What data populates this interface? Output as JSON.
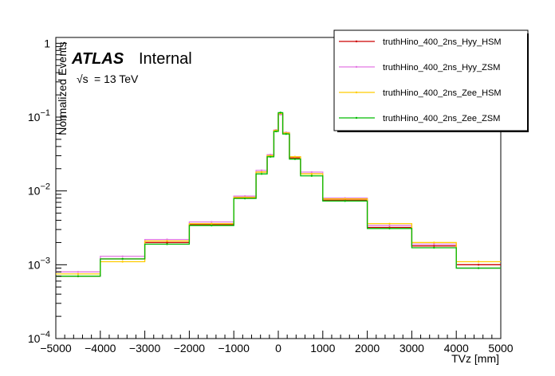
{
  "chart_data": {
    "type": "line",
    "style": "step-histogram",
    "xlabel": "TVz [mm]",
    "ylabel": "Normalized Events",
    "xlim": [
      -5000,
      5000
    ],
    "ylim": [
      0.0001,
      1.2
    ],
    "yscale": "log",
    "x_ticks": [
      "−5000",
      "−4000",
      "−3000",
      "−2000",
      "−1000",
      "0",
      "1000",
      "2000",
      "3000",
      "4000",
      "5000"
    ],
    "y_ticks": [
      {
        "base": "10",
        "exp": "−4",
        "value": 0.0001
      },
      {
        "base": "10",
        "exp": "−3",
        "value": 0.001
      },
      {
        "base": "10",
        "exp": "−2",
        "value": 0.01
      },
      {
        "base": "10",
        "exp": "−1",
        "value": 0.1
      },
      {
        "base": "1",
        "exp": "",
        "value": 1
      }
    ],
    "legend_position": "top-right",
    "annotations": {
      "experiment": "ATLAS",
      "status": "Internal",
      "energy": "= 13 TeV",
      "sqrt_symbol": "√s"
    },
    "bin_edges": [
      -5000,
      -4000,
      -3000,
      -2000,
      -1000,
      -500,
      -250,
      -100,
      0,
      100,
      250,
      500,
      1000,
      2000,
      3000,
      4000,
      5000
    ],
    "series": [
      {
        "name": "truthHino_400_2ns_Hyy_HSM",
        "color": "#cc0000",
        "values": [
          0.0007,
          0.0012,
          0.002,
          0.0035,
          0.008,
          0.018,
          0.03,
          0.065,
          0.11,
          0.06,
          0.028,
          0.017,
          0.0075,
          0.0032,
          0.0018,
          0.001
        ]
      },
      {
        "name": "truthHino_400_2ns_Hyy_ZSM",
        "color": "#e377e3",
        "values": [
          0.0008,
          0.0013,
          0.0022,
          0.0038,
          0.0085,
          0.019,
          0.031,
          0.067,
          0.108,
          0.062,
          0.029,
          0.018,
          0.008,
          0.0034,
          0.0019,
          0.0009
        ]
      },
      {
        "name": "truthHino_400_2ns_Zee_HSM",
        "color": "#ffcc00",
        "values": [
          0.00075,
          0.0011,
          0.0021,
          0.0036,
          0.0082,
          0.018,
          0.03,
          0.066,
          0.112,
          0.061,
          0.029,
          0.017,
          0.0078,
          0.0036,
          0.002,
          0.0011
        ]
      },
      {
        "name": "truthHino_400_2ns_Zee_ZSM",
        "color": "#00bb00",
        "values": [
          0.0007,
          0.0012,
          0.0019,
          0.0034,
          0.0079,
          0.017,
          0.029,
          0.064,
          0.115,
          0.059,
          0.027,
          0.016,
          0.0073,
          0.0031,
          0.0017,
          0.0009
        ]
      }
    ]
  }
}
